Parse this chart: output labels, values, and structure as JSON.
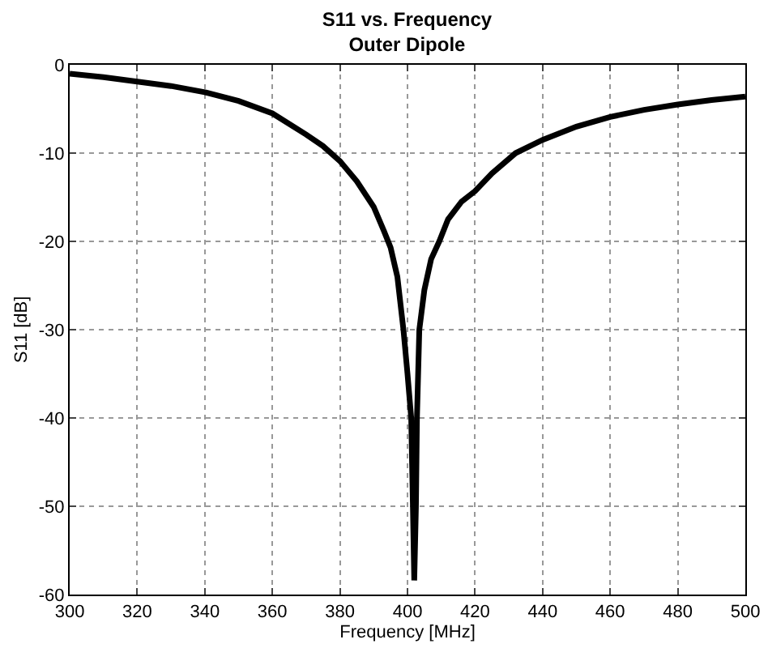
{
  "chart_data": {
    "type": "line",
    "title": "S11 vs. Frequency",
    "subtitle": "Outer Dipole",
    "xlabel": "Frequency [MHz]",
    "ylabel": "S11 [dB]",
    "x": [
      300,
      310,
      320,
      330,
      340,
      350,
      360,
      370,
      375,
      380,
      385,
      390,
      393,
      395,
      397,
      398.8,
      400,
      401.1,
      401.6,
      402,
      402.5,
      402.8,
      403.5,
      405,
      407,
      409.4,
      412,
      416,
      420,
      425,
      432,
      440,
      450,
      460,
      470,
      480,
      490,
      500
    ],
    "series": [
      {
        "color": "#000000",
        "values": [
          -1.0,
          -1.4,
          -1.9,
          -2.4,
          -3.1,
          -4.1,
          -5.5,
          -7.9,
          -9.2,
          -10.9,
          -13.2,
          -16.1,
          -18.8,
          -20.7,
          -24,
          -30,
          -35,
          -40,
          -50,
          -58.4,
          -50,
          -40,
          -30,
          -25.5,
          -22,
          -20,
          -17.5,
          -15.5,
          -14.3,
          -12.3,
          -10,
          -8.5,
          -7,
          -5.9,
          -5.1,
          -4.5,
          -4.0,
          -3.6
        ]
      }
    ],
    "xlim": [
      300,
      500
    ],
    "xticks": [
      300,
      320,
      340,
      360,
      380,
      400,
      420,
      440,
      460,
      480,
      500
    ],
    "ylim": [
      -60,
      0
    ],
    "yticks": [
      -60,
      -50,
      -40,
      -30,
      -20,
      -10,
      0
    ],
    "grid": true,
    "marker": "none",
    "line_style": "solid"
  }
}
